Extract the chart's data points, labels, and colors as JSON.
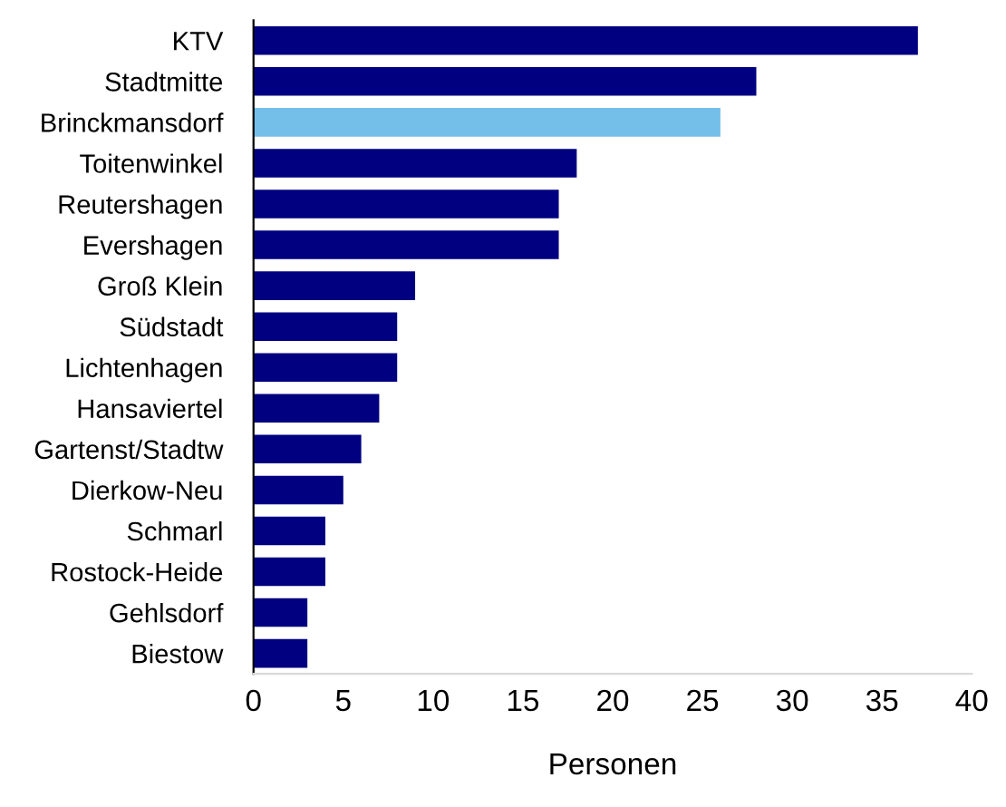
{
  "chart_data": {
    "type": "bar",
    "orientation": "horizontal",
    "xlabel": "Personen",
    "categories": [
      "KTV",
      "Stadtmitte",
      "Brinckmansdorf",
      "Toitenwinkel",
      "Reutershagen",
      "Evershagen",
      "Groß Klein",
      "Südstadt",
      "Lichtenhagen",
      "Hansaviertel",
      "Gartenst/Stadtw",
      "Dierkow-Neu",
      "Schmarl",
      "Rostock-Heide",
      "Gehlsdorf",
      "Biestow"
    ],
    "values": [
      37,
      28,
      26,
      18,
      17,
      17,
      9,
      8,
      8,
      7,
      6,
      5,
      4,
      4,
      3,
      3
    ],
    "colors": [
      "#000080",
      "#000080",
      "#73bfe9",
      "#000080",
      "#000080",
      "#000080",
      "#000080",
      "#000080",
      "#000080",
      "#000080",
      "#000080",
      "#000080",
      "#000080",
      "#000080",
      "#000080",
      "#000080"
    ],
    "xlim": [
      0,
      40
    ],
    "xticks": [
      0,
      5,
      10,
      15,
      20,
      25,
      30,
      35,
      40
    ],
    "grid": false,
    "legend": false
  }
}
